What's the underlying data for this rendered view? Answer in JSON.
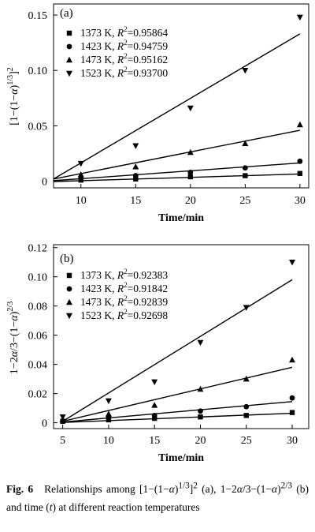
{
  "chart_data": [
    {
      "type": "scatter",
      "panel_label": "(a)",
      "ylabel_parts": [
        "[1−(1−",
        "α",
        ")",
        "1/3",
        "]",
        "2"
      ],
      "xlabel": "Time/min",
      "xlim": [
        7.5,
        30.8
      ],
      "ylim": [
        -0.006,
        0.16
      ],
      "xticks": [
        10,
        15,
        20,
        25,
        30
      ],
      "yticks": [
        0,
        0.05,
        0.1,
        0.15
      ],
      "ytick_labels": [
        "0",
        "0.05",
        "0.10",
        "0.15"
      ],
      "grid": false,
      "legend_placement": "top-left",
      "series": [
        {
          "name": "1373 K",
          "r2": "0.95864",
          "marker": "square",
          "x": [
            10,
            15,
            20,
            25,
            30
          ],
          "y": [
            0.001,
            0.002,
            0.004,
            0.005,
            0.007
          ],
          "fit": [
            [
              7.5,
              -0.0003
            ],
            [
              30,
              0.0065
            ]
          ]
        },
        {
          "name": "1423 K",
          "r2": "0.94759",
          "marker": "circle",
          "x": [
            10,
            15,
            20,
            25,
            30
          ],
          "y": [
            0.003,
            0.005,
            0.008,
            0.012,
            0.018
          ],
          "fit": [
            [
              7.5,
              0.0005
            ],
            [
              30,
              0.0165
            ]
          ]
        },
        {
          "name": "1473 K",
          "r2": "0.95162",
          "marker": "triangle-up",
          "x": [
            10,
            15,
            20,
            25,
            30
          ],
          "y": [
            0.006,
            0.013,
            0.026,
            0.034,
            0.051
          ],
          "fit": [
            [
              7.5,
              0.002
            ],
            [
              30,
              0.046
            ]
          ]
        },
        {
          "name": "1523 K",
          "r2": "0.93700",
          "marker": "triangle-down",
          "x": [
            10,
            15,
            20,
            25,
            30
          ],
          "y": [
            0.016,
            0.032,
            0.066,
            0.1,
            0.148
          ],
          "fit": [
            [
              7.5,
              0.002
            ],
            [
              30,
              0.133
            ]
          ]
        }
      ]
    },
    {
      "type": "scatter",
      "panel_label": "(b)",
      "ylabel_parts": [
        "1−2",
        "α",
        "/3−(1−",
        "α",
        ")",
        "2/3"
      ],
      "xlabel": "Time/min",
      "xlim": [
        4,
        31.8
      ],
      "ylim": [
        -0.004,
        0.122
      ],
      "xticks": [
        5,
        10,
        15,
        20,
        25,
        30
      ],
      "yticks": [
        0,
        0.02,
        0.04,
        0.06,
        0.08,
        0.1,
        0.12
      ],
      "ytick_labels": [
        "0",
        "0.02",
        "0.04",
        "0.06",
        "0.08",
        "0.10",
        "0.12"
      ],
      "grid": false,
      "legend_placement": "top-left",
      "series": [
        {
          "name": "1373 K",
          "r2": "0.92383",
          "marker": "square",
          "x": [
            5,
            10,
            15,
            20,
            25,
            30
          ],
          "y": [
            0.001,
            0.002,
            0.003,
            0.004,
            0.005,
            0.007
          ],
          "fit": [
            [
              5,
              0.0002
            ],
            [
              30,
              0.0065
            ]
          ]
        },
        {
          "name": "1423 K",
          "r2": "0.91842",
          "marker": "circle",
          "x": [
            5,
            10,
            15,
            20,
            25,
            30
          ],
          "y": [
            0.001,
            0.004,
            0.005,
            0.008,
            0.011,
            0.017
          ],
          "fit": [
            [
              5,
              0.0005
            ],
            [
              30,
              0.0145
            ]
          ]
        },
        {
          "name": "1473 K",
          "r2": "0.92839",
          "marker": "triangle-up",
          "x": [
            5,
            10,
            15,
            20,
            25,
            30
          ],
          "y": [
            0.002,
            0.006,
            0.012,
            0.023,
            0.03,
            0.043
          ],
          "fit": [
            [
              5,
              0.001
            ],
            [
              30,
              0.038
            ]
          ]
        },
        {
          "name": "1523 K",
          "r2": "0.92698",
          "marker": "triangle-down",
          "x": [
            5,
            10,
            15,
            20,
            25,
            30
          ],
          "y": [
            0.004,
            0.015,
            0.028,
            0.055,
            0.079,
            0.11
          ],
          "fit": [
            [
              5,
              0.001
            ],
            [
              30,
              0.098
            ]
          ]
        }
      ]
    }
  ],
  "caption": {
    "figure_label": "Fig. 6",
    "segments": [
      {
        "t": "Relationships among [1−(1−",
        "s": ""
      },
      {
        "t": "α",
        "s": "i"
      },
      {
        "t": ")",
        "s": ""
      },
      {
        "t": "1/3",
        "s": "sup"
      },
      {
        "t": "]",
        "s": ""
      },
      {
        "t": "2",
        "s": "sup"
      },
      {
        "t": " (a), 1−2",
        "s": ""
      },
      {
        "t": "α",
        "s": "i"
      },
      {
        "t": "/3−(1−",
        "s": ""
      },
      {
        "t": "α",
        "s": "i"
      },
      {
        "t": ")",
        "s": ""
      },
      {
        "t": "2/3",
        "s": "sup"
      },
      {
        "t": " (b) and time (",
        "s": ""
      },
      {
        "t": "t",
        "s": "i"
      },
      {
        "t": ") at different reaction temperatures",
        "s": ""
      }
    ]
  }
}
